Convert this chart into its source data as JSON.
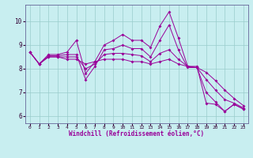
{
  "background_color": "#c8eef0",
  "line_color": "#990099",
  "grid_color": "#99cccc",
  "xlabel": "Windchill (Refroidissement éolien,°C)",
  "xlim": [
    -0.5,
    23.5
  ],
  "ylim": [
    5.7,
    10.7
  ],
  "yticks": [
    6,
    7,
    8,
    9,
    10
  ],
  "xticks": [
    0,
    1,
    2,
    3,
    4,
    5,
    6,
    7,
    8,
    9,
    10,
    11,
    12,
    13,
    14,
    15,
    16,
    17,
    18,
    19,
    20,
    21,
    22,
    23
  ],
  "series": [
    [
      8.7,
      8.2,
      8.6,
      8.6,
      8.7,
      9.2,
      7.8,
      8.3,
      9.0,
      9.2,
      9.45,
      9.2,
      9.2,
      8.9,
      9.8,
      10.4,
      9.3,
      8.1,
      8.1,
      6.55,
      6.5,
      6.2,
      6.5,
      6.3
    ],
    [
      8.7,
      8.2,
      8.55,
      8.55,
      8.6,
      8.6,
      7.55,
      8.1,
      8.8,
      8.85,
      9.0,
      8.85,
      8.85,
      8.5,
      9.2,
      9.85,
      8.8,
      8.05,
      8.05,
      7.0,
      6.6,
      6.2,
      6.5,
      6.3
    ],
    [
      8.7,
      8.2,
      8.5,
      8.5,
      8.5,
      8.5,
      8.0,
      8.2,
      8.6,
      8.65,
      8.65,
      8.6,
      8.55,
      8.3,
      8.65,
      8.8,
      8.4,
      8.1,
      8.05,
      7.55,
      7.1,
      6.7,
      6.55,
      6.35
    ],
    [
      8.7,
      8.2,
      8.5,
      8.5,
      8.4,
      8.4,
      8.2,
      8.3,
      8.4,
      8.4,
      8.4,
      8.3,
      8.3,
      8.2,
      8.3,
      8.4,
      8.2,
      8.1,
      8.05,
      7.85,
      7.5,
      7.1,
      6.75,
      6.45
    ]
  ]
}
